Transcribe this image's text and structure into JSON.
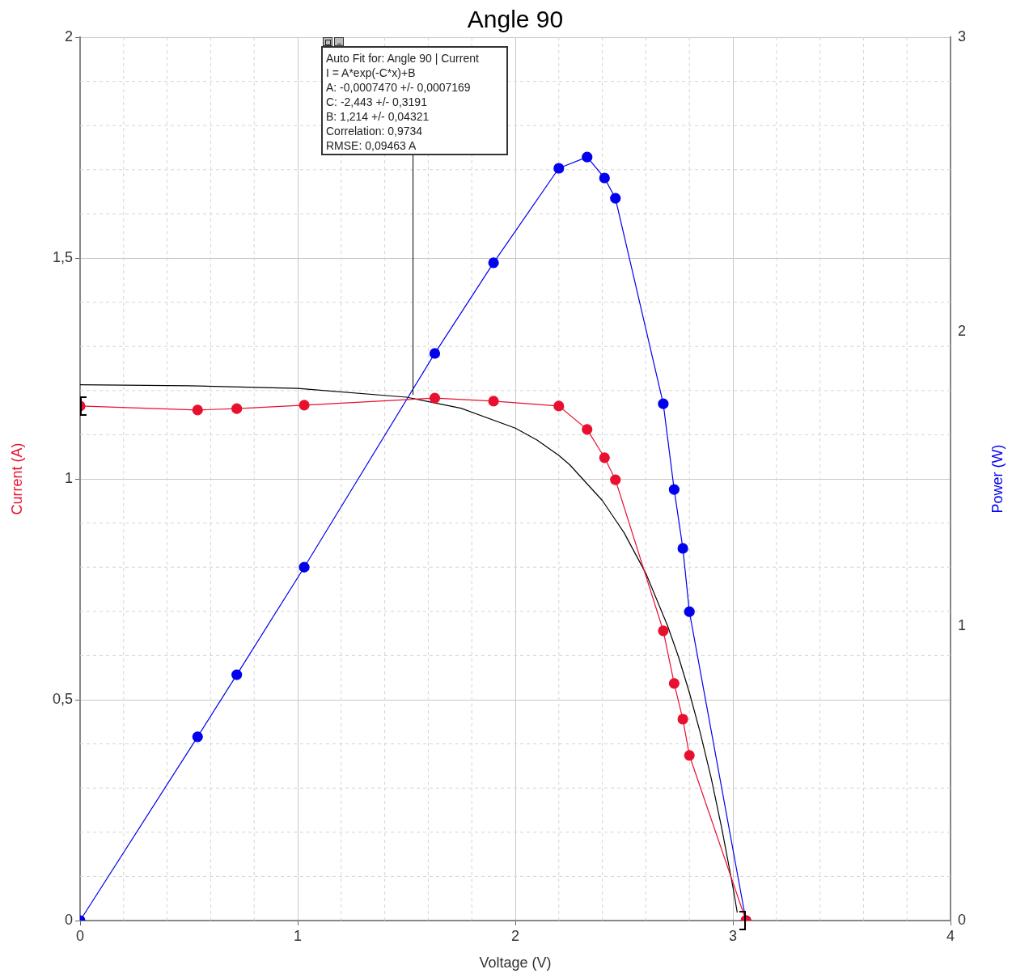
{
  "chart_data": {
    "type": "line",
    "title": "Angle 90",
    "xlabel": "Voltage (V)",
    "ylabel": "Current (A)",
    "y2label": "Power (W)",
    "xlim": [
      0,
      4
    ],
    "xticks": [
      0,
      1,
      2,
      3,
      4
    ],
    "ylim": [
      0,
      2
    ],
    "yticks": [
      0,
      {
        "value": 0.5,
        "label": "0,5"
      },
      1,
      {
        "value": 1.5,
        "label": "1,5"
      },
      2
    ],
    "y2lim": [
      0,
      3
    ],
    "y2ticks": [
      0,
      1,
      2,
      3
    ],
    "grid": true,
    "legend": false,
    "marker": "circle",
    "line_style": "solid",
    "series": [
      {
        "axis": "y",
        "color": "#e8102e",
        "x": [
          0,
          0.54,
          0.72,
          1.03,
          1.63,
          1.9,
          2.2,
          2.33,
          2.41,
          2.46,
          2.68,
          2.73,
          2.77,
          2.8,
          3.06
        ],
        "values": [
          1.165,
          1.156,
          1.159,
          1.167,
          1.183,
          1.176,
          1.165,
          1.112,
          1.048,
          0.998,
          0.656,
          0.537,
          0.456,
          0.374,
          0
        ]
      },
      {
        "axis": "y2",
        "color": "#0000ee",
        "x": [
          0,
          0.54,
          0.72,
          1.03,
          1.63,
          1.9,
          2.2,
          2.33,
          2.41,
          2.46,
          2.68,
          2.73,
          2.77,
          2.8,
          3.06
        ],
        "values": [
          0,
          0.624,
          0.835,
          1.2,
          1.926,
          2.234,
          2.555,
          2.593,
          2.522,
          2.453,
          1.755,
          1.464,
          1.264,
          1.049,
          0
        ]
      },
      {
        "axis": "y",
        "color": "#000000",
        "marker": "none",
        "x": [
          0,
          0.5,
          1,
          1.5,
          1.75,
          2,
          2.1,
          2.2,
          2.25,
          2.4,
          2.5,
          2.6,
          2.7,
          2.75,
          2.8,
          2.85,
          2.9,
          2.95,
          3,
          3.02
        ],
        "values": [
          1.213,
          1.211,
          1.205,
          1.185,
          1.16,
          1.115,
          1.088,
          1.053,
          1.032,
          0.951,
          0.878,
          0.786,
          0.667,
          0.597,
          0.516,
          0.425,
          0.323,
          0.206,
          0.076,
          0.018
        ]
      }
    ],
    "annotations": [
      {
        "text": "Auto Fit for: Angle 90 | Current\nI = A*exp(-C*x)+B\nA: -0,0007470 +/- 0,0007169\nC: -2,443 +/- 0,3191\nB: 1,214 +/- 0,04321\nCorrelation: 0,9734\nRMSE: 0,09463 A",
        "x": 1.53,
        "y": 1.19
      }
    ]
  }
}
